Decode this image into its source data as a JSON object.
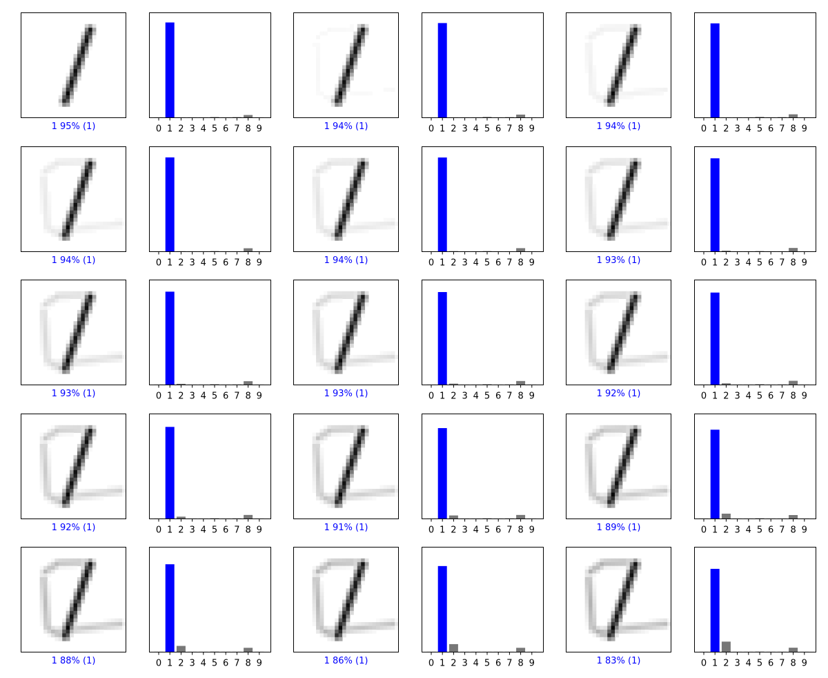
{
  "colors": {
    "correct": "#0000ff",
    "other": "#777777",
    "ink": "#000000"
  },
  "chart_data": {
    "type": "bar",
    "description_layout": "5 rows x 3 pairs; each pair is a digit image panel with caption and a prediction probability bar chart",
    "categories": [
      "0",
      "1",
      "2",
      "3",
      "4",
      "5",
      "6",
      "7",
      "8",
      "9"
    ],
    "ylim": [
      0,
      1
    ],
    "grid": false,
    "samples": [
      {
        "caption": "1 95% (1)",
        "predicted": 1,
        "true_label": 1,
        "stroke2": 0.0,
        "values": [
          0.001,
          0.953,
          0.002,
          0.001,
          0.001,
          0.007,
          0.001,
          0.006,
          0.027,
          0.001
        ]
      },
      {
        "caption": "1 94% (1)",
        "predicted": 1,
        "true_label": 1,
        "stroke2": 0.03,
        "values": [
          0.001,
          0.947,
          0.003,
          0.001,
          0.001,
          0.008,
          0.001,
          0.006,
          0.031,
          0.001
        ]
      },
      {
        "caption": "1 94% (1)",
        "predicted": 1,
        "true_label": 1,
        "stroke2": 0.06,
        "values": [
          0.001,
          0.944,
          0.004,
          0.001,
          0.001,
          0.008,
          0.001,
          0.006,
          0.034,
          0.001
        ]
      },
      {
        "caption": "1 94% (1)",
        "predicted": 1,
        "true_label": 1,
        "stroke2": 0.09,
        "values": [
          0.001,
          0.943,
          0.005,
          0.002,
          0.002,
          0.006,
          0.002,
          0.004,
          0.034,
          0.001
        ]
      },
      {
        "caption": "1 94% (1)",
        "predicted": 1,
        "true_label": 1,
        "stroke2": 0.11,
        "values": [
          0.001,
          0.942,
          0.006,
          0.002,
          0.002,
          0.006,
          0.002,
          0.004,
          0.035,
          0.001
        ]
      },
      {
        "caption": "1 93% (1)",
        "predicted": 1,
        "true_label": 1,
        "stroke2": 0.13,
        "values": [
          0.001,
          0.934,
          0.01,
          0.003,
          0.002,
          0.006,
          0.002,
          0.004,
          0.037,
          0.001
        ]
      },
      {
        "caption": "1 93% (1)",
        "predicted": 1,
        "true_label": 1,
        "stroke2": 0.15,
        "values": [
          0.001,
          0.933,
          0.011,
          0.002,
          0.002,
          0.007,
          0.001,
          0.005,
          0.037,
          0.001
        ]
      },
      {
        "caption": "1 93% (1)",
        "predicted": 1,
        "true_label": 1,
        "stroke2": 0.17,
        "values": [
          0.001,
          0.929,
          0.013,
          0.002,
          0.002,
          0.007,
          0.001,
          0.005,
          0.039,
          0.001
        ]
      },
      {
        "caption": "1 92% (1)",
        "predicted": 1,
        "true_label": 1,
        "stroke2": 0.19,
        "values": [
          0.001,
          0.924,
          0.016,
          0.002,
          0.002,
          0.007,
          0.001,
          0.005,
          0.041,
          0.001
        ]
      },
      {
        "caption": "1 92% (1)",
        "predicted": 1,
        "true_label": 1,
        "stroke2": 0.21,
        "values": [
          0.002,
          0.92,
          0.022,
          0.002,
          0.002,
          0.006,
          0.001,
          0.005,
          0.039,
          0.001
        ]
      },
      {
        "caption": "1 91% (1)",
        "predicted": 1,
        "true_label": 1,
        "stroke2": 0.23,
        "values": [
          0.002,
          0.908,
          0.034,
          0.002,
          0.002,
          0.006,
          0.001,
          0.005,
          0.039,
          0.001
        ]
      },
      {
        "caption": "1 89% (1)",
        "predicted": 1,
        "true_label": 1,
        "stroke2": 0.25,
        "values": [
          0.002,
          0.892,
          0.052,
          0.002,
          0.002,
          0.006,
          0.001,
          0.004,
          0.038,
          0.001
        ]
      },
      {
        "caption": "1 88% (1)",
        "predicted": 1,
        "true_label": 1,
        "stroke2": 0.27,
        "values": [
          0.001,
          0.879,
          0.062,
          0.003,
          0.001,
          0.005,
          0.003,
          0.002,
          0.043,
          0.001
        ]
      },
      {
        "caption": "1 86% (1)",
        "predicted": 1,
        "true_label": 1,
        "stroke2": 0.29,
        "values": [
          0.001,
          0.861,
          0.08,
          0.004,
          0.001,
          0.004,
          0.003,
          0.002,
          0.043,
          0.001
        ]
      },
      {
        "caption": "1 83% (1)",
        "predicted": 1,
        "true_label": 1,
        "stroke2": 0.31,
        "values": [
          0.001,
          0.833,
          0.105,
          0.004,
          0.001,
          0.005,
          0.004,
          0.002,
          0.044,
          0.001
        ]
      }
    ]
  }
}
